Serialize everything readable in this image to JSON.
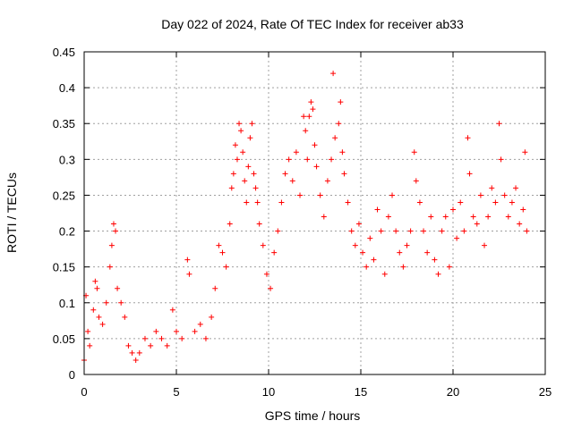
{
  "chart_data": {
    "type": "scatter",
    "title": "Day 022 of 2024, Rate Of TEC Index for receiver ab33",
    "xlabel": "GPS time / hours",
    "ylabel": "ROTI / TECUs",
    "xlim": [
      0,
      25
    ],
    "ylim": [
      0,
      0.45
    ],
    "xticks": [
      0,
      5,
      10,
      15,
      20,
      25
    ],
    "yticks": [
      0,
      0.05,
      0.1,
      0.15,
      0.2,
      0.25,
      0.3,
      0.35,
      0.4,
      0.45
    ],
    "xtick_labels": [
      "0",
      "5",
      "10",
      "15",
      "20",
      "25"
    ],
    "ytick_labels": [
      "0",
      "0.05",
      "0.1",
      "0.15",
      "0.2",
      "0.25",
      "0.3",
      "0.35",
      "0.4",
      "0.45"
    ],
    "grid": true,
    "marker": "plus",
    "series_color": "#ff0000",
    "points": [
      [
        0.0,
        0.02
      ],
      [
        0.1,
        0.11
      ],
      [
        0.2,
        0.06
      ],
      [
        0.3,
        0.04
      ],
      [
        0.5,
        0.09
      ],
      [
        0.6,
        0.13
      ],
      [
        0.7,
        0.12
      ],
      [
        0.8,
        0.08
      ],
      [
        1.0,
        0.07
      ],
      [
        1.2,
        0.1
      ],
      [
        1.4,
        0.15
      ],
      [
        1.5,
        0.18
      ],
      [
        1.6,
        0.21
      ],
      [
        1.7,
        0.2
      ],
      [
        1.8,
        0.12
      ],
      [
        2.0,
        0.1
      ],
      [
        2.2,
        0.08
      ],
      [
        2.4,
        0.04
      ],
      [
        2.6,
        0.03
      ],
      [
        2.8,
        0.02
      ],
      [
        3.0,
        0.03
      ],
      [
        3.3,
        0.05
      ],
      [
        3.6,
        0.04
      ],
      [
        3.9,
        0.06
      ],
      [
        4.2,
        0.05
      ],
      [
        4.5,
        0.04
      ],
      [
        4.8,
        0.09
      ],
      [
        5.0,
        0.06
      ],
      [
        5.3,
        0.05
      ],
      [
        5.6,
        0.16
      ],
      [
        5.7,
        0.14
      ],
      [
        6.0,
        0.06
      ],
      [
        6.3,
        0.07
      ],
      [
        6.6,
        0.05
      ],
      [
        6.9,
        0.08
      ],
      [
        7.1,
        0.12
      ],
      [
        7.3,
        0.18
      ],
      [
        7.5,
        0.17
      ],
      [
        7.7,
        0.15
      ],
      [
        7.9,
        0.21
      ],
      [
        8.0,
        0.26
      ],
      [
        8.1,
        0.28
      ],
      [
        8.2,
        0.32
      ],
      [
        8.3,
        0.3
      ],
      [
        8.4,
        0.35
      ],
      [
        8.5,
        0.34
      ],
      [
        8.6,
        0.31
      ],
      [
        8.7,
        0.27
      ],
      [
        8.8,
        0.24
      ],
      [
        8.9,
        0.29
      ],
      [
        9.0,
        0.33
      ],
      [
        9.1,
        0.35
      ],
      [
        9.2,
        0.28
      ],
      [
        9.3,
        0.26
      ],
      [
        9.4,
        0.24
      ],
      [
        9.5,
        0.21
      ],
      [
        9.7,
        0.18
      ],
      [
        9.9,
        0.14
      ],
      [
        10.1,
        0.12
      ],
      [
        10.3,
        0.17
      ],
      [
        10.5,
        0.2
      ],
      [
        10.7,
        0.24
      ],
      [
        10.9,
        0.28
      ],
      [
        11.1,
        0.3
      ],
      [
        11.3,
        0.27
      ],
      [
        11.5,
        0.31
      ],
      [
        11.7,
        0.25
      ],
      [
        11.9,
        0.36
      ],
      [
        12.0,
        0.34
      ],
      [
        12.1,
        0.3
      ],
      [
        12.2,
        0.36
      ],
      [
        12.3,
        0.38
      ],
      [
        12.4,
        0.37
      ],
      [
        12.5,
        0.32
      ],
      [
        12.6,
        0.29
      ],
      [
        12.8,
        0.25
      ],
      [
        13.0,
        0.22
      ],
      [
        13.2,
        0.27
      ],
      [
        13.4,
        0.3
      ],
      [
        13.5,
        0.42
      ],
      [
        13.6,
        0.33
      ],
      [
        13.8,
        0.35
      ],
      [
        13.9,
        0.38
      ],
      [
        14.0,
        0.31
      ],
      [
        14.1,
        0.28
      ],
      [
        14.3,
        0.24
      ],
      [
        14.5,
        0.2
      ],
      [
        14.7,
        0.18
      ],
      [
        14.9,
        0.21
      ],
      [
        15.1,
        0.17
      ],
      [
        15.3,
        0.15
      ],
      [
        15.5,
        0.19
      ],
      [
        15.7,
        0.16
      ],
      [
        15.9,
        0.23
      ],
      [
        16.1,
        0.2
      ],
      [
        16.3,
        0.14
      ],
      [
        16.5,
        0.22
      ],
      [
        16.7,
        0.25
      ],
      [
        16.9,
        0.2
      ],
      [
        17.1,
        0.17
      ],
      [
        17.3,
        0.15
      ],
      [
        17.5,
        0.18
      ],
      [
        17.7,
        0.2
      ],
      [
        17.9,
        0.31
      ],
      [
        18.0,
        0.27
      ],
      [
        18.2,
        0.24
      ],
      [
        18.4,
        0.2
      ],
      [
        18.6,
        0.17
      ],
      [
        18.8,
        0.22
      ],
      [
        19.0,
        0.16
      ],
      [
        19.2,
        0.14
      ],
      [
        19.4,
        0.2
      ],
      [
        19.6,
        0.22
      ],
      [
        19.8,
        0.15
      ],
      [
        20.0,
        0.23
      ],
      [
        20.2,
        0.19
      ],
      [
        20.4,
        0.24
      ],
      [
        20.6,
        0.2
      ],
      [
        20.8,
        0.33
      ],
      [
        20.9,
        0.28
      ],
      [
        21.1,
        0.22
      ],
      [
        21.3,
        0.21
      ],
      [
        21.5,
        0.25
      ],
      [
        21.7,
        0.18
      ],
      [
        21.9,
        0.22
      ],
      [
        22.1,
        0.26
      ],
      [
        22.3,
        0.24
      ],
      [
        22.5,
        0.35
      ],
      [
        22.6,
        0.3
      ],
      [
        22.8,
        0.25
      ],
      [
        23.0,
        0.22
      ],
      [
        23.2,
        0.24
      ],
      [
        23.4,
        0.26
      ],
      [
        23.6,
        0.21
      ],
      [
        23.8,
        0.23
      ],
      [
        23.9,
        0.31
      ],
      [
        24.0,
        0.2
      ]
    ]
  }
}
